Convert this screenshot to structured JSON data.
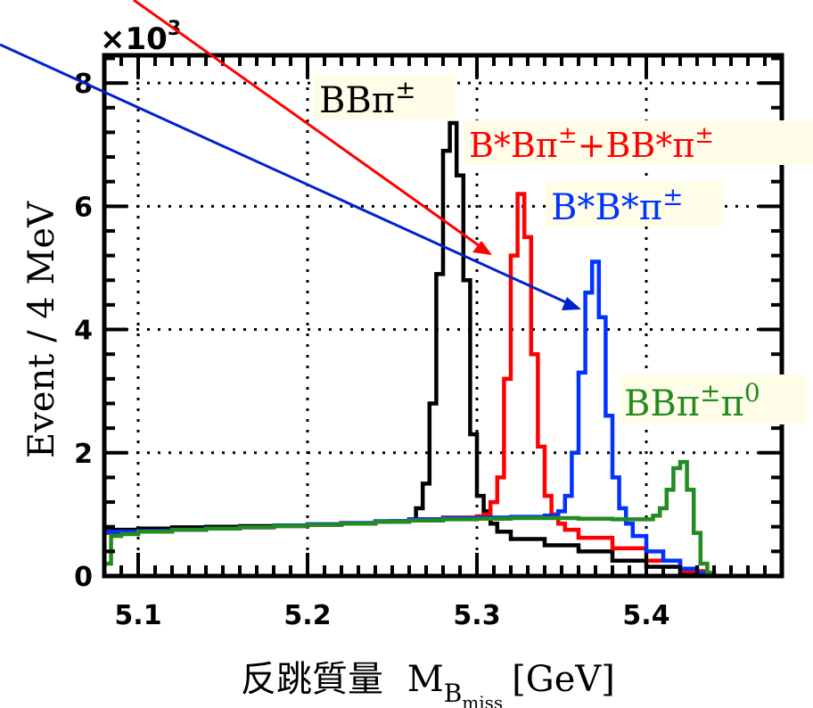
{
  "chart_data": {
    "type": "line",
    "title": "",
    "xlabel": "反跳質量",
    "xlabel_symbol": "M",
    "xlabel_sub": "B",
    "xlabel_subsub": "miss",
    "xlabel_unit": "[GeV]",
    "ylabel": "Event / 4 MeV",
    "y_multiplier_base": "×10",
    "y_multiplier_exp": "3",
    "xlim": [
      5.08,
      5.48
    ],
    "ylim": [
      0,
      8.45
    ],
    "x_ticks": [
      5.1,
      5.2,
      5.3,
      5.4
    ],
    "x_tick_labels": [
      "5.1",
      "5.2",
      "5.3",
      "5.4"
    ],
    "y_ticks": [
      0,
      2,
      4,
      6,
      8
    ],
    "y_tick_labels": [
      "0",
      "2",
      "4",
      "6",
      "8"
    ],
    "grid": true,
    "series": [
      {
        "name": "BBπ±",
        "color": "#000000",
        "x": [
          5.08,
          5.1,
          5.12,
          5.14,
          5.16,
          5.18,
          5.2,
          5.22,
          5.24,
          5.25,
          5.26,
          5.264,
          5.268,
          5.272,
          5.276,
          5.28,
          5.284,
          5.288,
          5.292,
          5.296,
          5.3,
          5.304,
          5.308,
          5.312,
          5.32,
          5.34,
          5.36,
          5.38,
          5.4,
          5.42,
          5.43
        ],
        "y": [
          0.75,
          0.77,
          0.79,
          0.8,
          0.81,
          0.82,
          0.84,
          0.86,
          0.88,
          0.89,
          0.92,
          1.1,
          1.5,
          2.8,
          4.9,
          6.9,
          7.35,
          6.5,
          4.8,
          2.3,
          1.3,
          1.05,
          0.85,
          0.72,
          0.6,
          0.5,
          0.4,
          0.25,
          0.15,
          0.05,
          0.0
        ]
      },
      {
        "name": "B*Bπ±+BB*π±",
        "color": "#ff0000",
        "x": [
          5.08,
          5.1,
          5.12,
          5.14,
          5.16,
          5.18,
          5.2,
          5.22,
          5.24,
          5.26,
          5.28,
          5.3,
          5.304,
          5.308,
          5.312,
          5.316,
          5.32,
          5.324,
          5.328,
          5.332,
          5.336,
          5.34,
          5.344,
          5.348,
          5.352,
          5.36,
          5.38,
          5.4,
          5.42,
          5.435
        ],
        "y": [
          0.7,
          0.72,
          0.75,
          0.77,
          0.79,
          0.81,
          0.83,
          0.85,
          0.88,
          0.92,
          0.95,
          0.97,
          1.0,
          1.2,
          1.6,
          3.2,
          5.2,
          6.2,
          5.5,
          3.6,
          2.1,
          1.3,
          1.0,
          0.85,
          0.75,
          0.62,
          0.45,
          0.25,
          0.08,
          0.0
        ]
      },
      {
        "name": "B*B*π±",
        "color": "#0033ff",
        "x": [
          5.08,
          5.1,
          5.12,
          5.14,
          5.16,
          5.18,
          5.2,
          5.22,
          5.24,
          5.26,
          5.28,
          5.3,
          5.32,
          5.34,
          5.348,
          5.352,
          5.356,
          5.36,
          5.364,
          5.368,
          5.372,
          5.376,
          5.38,
          5.384,
          5.388,
          5.392,
          5.4,
          5.41,
          5.42,
          5.43,
          5.44
        ],
        "y": [
          0.72,
          0.73,
          0.75,
          0.77,
          0.79,
          0.82,
          0.84,
          0.86,
          0.89,
          0.92,
          0.94,
          0.95,
          0.96,
          0.98,
          1.05,
          1.3,
          2.0,
          3.3,
          4.6,
          5.1,
          4.2,
          2.6,
          1.6,
          1.1,
          0.85,
          0.65,
          0.4,
          0.25,
          0.12,
          0.05,
          0.0
        ]
      },
      {
        "name": "BBπ±π0",
        "color": "#228b22",
        "x": [
          5.08,
          5.084,
          5.09,
          5.1,
          5.12,
          5.14,
          5.16,
          5.18,
          5.2,
          5.22,
          5.24,
          5.26,
          5.28,
          5.3,
          5.32,
          5.34,
          5.36,
          5.38,
          5.4,
          5.404,
          5.408,
          5.412,
          5.416,
          5.42,
          5.424,
          5.428,
          5.432,
          5.436,
          5.44,
          5.48
        ],
        "y": [
          0.2,
          0.65,
          0.68,
          0.72,
          0.75,
          0.77,
          0.79,
          0.81,
          0.83,
          0.85,
          0.88,
          0.9,
          0.92,
          0.93,
          0.94,
          0.94,
          0.93,
          0.92,
          0.92,
          0.98,
          1.1,
          1.4,
          1.75,
          1.85,
          1.4,
          0.7,
          0.2,
          0.05,
          0.0,
          0.0
        ]
      }
    ],
    "annotations": [
      {
        "id": "bb",
        "text_main": "BBπ",
        "text_sup": "±",
        "color": "#000000"
      },
      {
        "id": "bsb",
        "text_main": "B*Bπ",
        "text_sup": "±",
        "text_mid": "+BB*π",
        "text_sup2": "±",
        "color": "#ff0000"
      },
      {
        "id": "bsbs",
        "text_main": "B*B*π",
        "text_sup": "±",
        "color": "#0033ff"
      },
      {
        "id": "bbpp",
        "text_main": "BBπ",
        "text_sup": "±",
        "text_mid": "π",
        "text_sup2": "0",
        "color": "#228b22"
      }
    ]
  }
}
